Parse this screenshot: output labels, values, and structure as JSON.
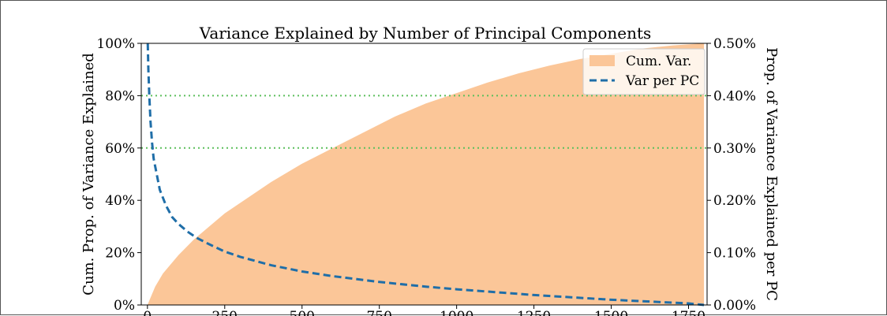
{
  "chart_data": {
    "type": "area",
    "title": "Variance Explained by Number of Principal Components",
    "xlabel": "",
    "ylabel": "Cum. Prop. of Variance Explained",
    "y2label": "Prop. of Variance Explained per PC",
    "xlim": [
      -20,
      1810
    ],
    "ylim": [
      0,
      1.0
    ],
    "y2lim": [
      0,
      0.005
    ],
    "x_ticks": [
      0,
      250,
      500,
      750,
      1000,
      1250,
      1500,
      1750
    ],
    "x_tick_labels": [
      "0",
      "250",
      "500",
      "750",
      "1000",
      "1250",
      "1500",
      "1750"
    ],
    "y_ticks": [
      0,
      0.2,
      0.4,
      0.6,
      0.8,
      1.0
    ],
    "y_tick_labels": [
      "0%",
      "20%",
      "40%",
      "60%",
      "80%",
      "100%"
    ],
    "y2_ticks": [
      0,
      0.001,
      0.002,
      0.003,
      0.004,
      0.005
    ],
    "y2_tick_labels": [
      "0.00%",
      "0.10%",
      "0.20%",
      "0.30%",
      "0.40%",
      "0.50%"
    ],
    "reference_lines": [
      0.6,
      0.8
    ],
    "legend_position": "top-right",
    "colors": {
      "area": "#fbc698",
      "line": "#1f6ea8",
      "reference": "#5cbf5c"
    },
    "series": [
      {
        "name": "Cum. Var.",
        "style": "filled-area",
        "axis": "left",
        "x": [
          0,
          25,
          50,
          100,
          150,
          200,
          250,
          300,
          400,
          500,
          600,
          700,
          800,
          900,
          1000,
          1100,
          1200,
          1300,
          1400,
          1500,
          1600,
          1700,
          1800
        ],
        "values": [
          0.0,
          0.07,
          0.12,
          0.19,
          0.25,
          0.3,
          0.35,
          0.39,
          0.47,
          0.54,
          0.6,
          0.66,
          0.72,
          0.77,
          0.81,
          0.85,
          0.885,
          0.915,
          0.94,
          0.96,
          0.98,
          0.992,
          1.0
        ]
      },
      {
        "name": "Var per PC",
        "style": "dashed-line",
        "axis": "right",
        "x": [
          1,
          3,
          6,
          10,
          15,
          20,
          30,
          40,
          60,
          80,
          100,
          130,
          160,
          200,
          250,
          300,
          400,
          500,
          600,
          750,
          900,
          1000,
          1250,
          1500,
          1750,
          1800
        ],
        "values": [
          0.005,
          0.0045,
          0.004,
          0.0035,
          0.0031,
          0.0028,
          0.0025,
          0.0022,
          0.0019,
          0.00168,
          0.00155,
          0.0014,
          0.00128,
          0.00116,
          0.00102,
          0.00092,
          0.00076,
          0.00064,
          0.00055,
          0.00044,
          0.00035,
          0.0003,
          0.00019,
          0.0001,
          3e-05,
          0.0
        ]
      }
    ]
  }
}
